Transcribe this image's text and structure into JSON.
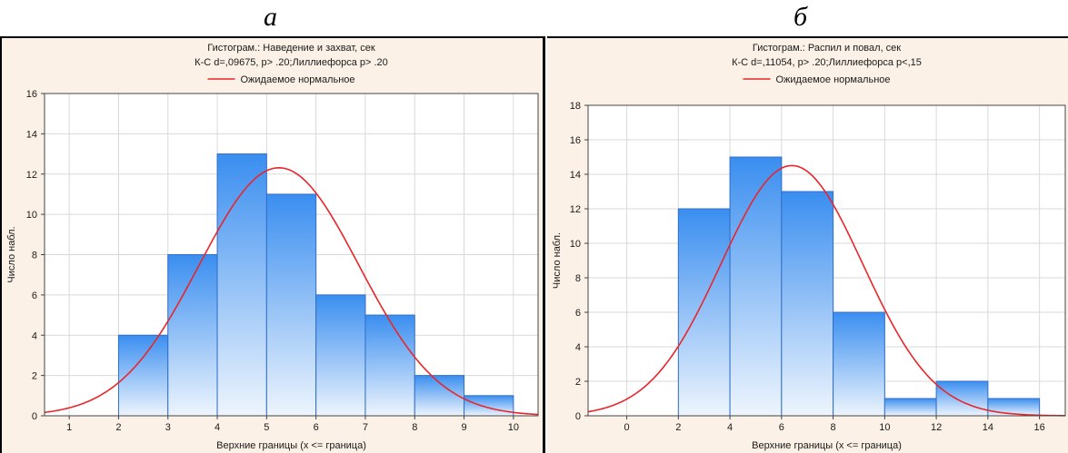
{
  "panel_labels": [
    "а",
    "б"
  ],
  "chart_data": [
    {
      "type": "bar",
      "title": "Гистограм.: Наведение и захват, сек",
      "subtitle": "К-С d=,09675, p> .20;Лиллиефорса p> .20",
      "legend": "Ожидаемое нормальное",
      "legend_position": "top-center",
      "xlabel": "Верхние границы (x <= граница)",
      "ylabel": "Число набл.",
      "xlim": [
        0.5,
        10.5
      ],
      "ylim": [
        0,
        16
      ],
      "xticks": [
        1,
        2,
        3,
        4,
        5,
        6,
        7,
        8,
        9,
        10
      ],
      "yticks": [
        0,
        2,
        4,
        6,
        8,
        10,
        12,
        14,
        16
      ],
      "bin_edges": [
        2,
        3,
        4,
        5,
        6,
        7,
        8,
        9,
        10
      ],
      "values": [
        4,
        8,
        13,
        11,
        6,
        5,
        2,
        1
      ],
      "normal_curve": {
        "mean": 5.25,
        "sd": 1.62,
        "n": 50,
        "bin_width": 1
      },
      "grid": true,
      "colors": {
        "bar_top": "#3a8ef0",
        "bar_bottom": "#eef5fd",
        "bar_edge": "#2f6fc8",
        "curve": "#e8262b"
      }
    },
    {
      "type": "bar",
      "title": "Гистограм.: Распил и повал, сек",
      "subtitle": "К-С d=,11054, p> .20;Лиллиефорса p<,15",
      "legend": "Ожидаемое нормальное",
      "legend_position": "top-center",
      "xlabel": "Верхние границы (x <= граница)",
      "ylabel": "Число набл.",
      "xlim": [
        -1.5,
        17
      ],
      "ylim": [
        0,
        18
      ],
      "xticks": [
        0,
        2,
        4,
        6,
        8,
        10,
        12,
        14,
        16
      ],
      "yticks": [
        0,
        2,
        4,
        6,
        8,
        10,
        12,
        14,
        16,
        18
      ],
      "bin_edges": [
        2,
        4,
        6,
        8,
        10,
        12,
        14,
        16
      ],
      "values": [
        12,
        15,
        13,
        6,
        1,
        2,
        1
      ],
      "normal_curve": {
        "mean": 6.4,
        "sd": 2.75,
        "n": 50,
        "bin_width": 2
      },
      "grid": true,
      "colors": {
        "bar_top": "#3a8ef0",
        "bar_bottom": "#eef5fd",
        "bar_edge": "#2f6fc8",
        "curve": "#e8262b"
      }
    }
  ]
}
